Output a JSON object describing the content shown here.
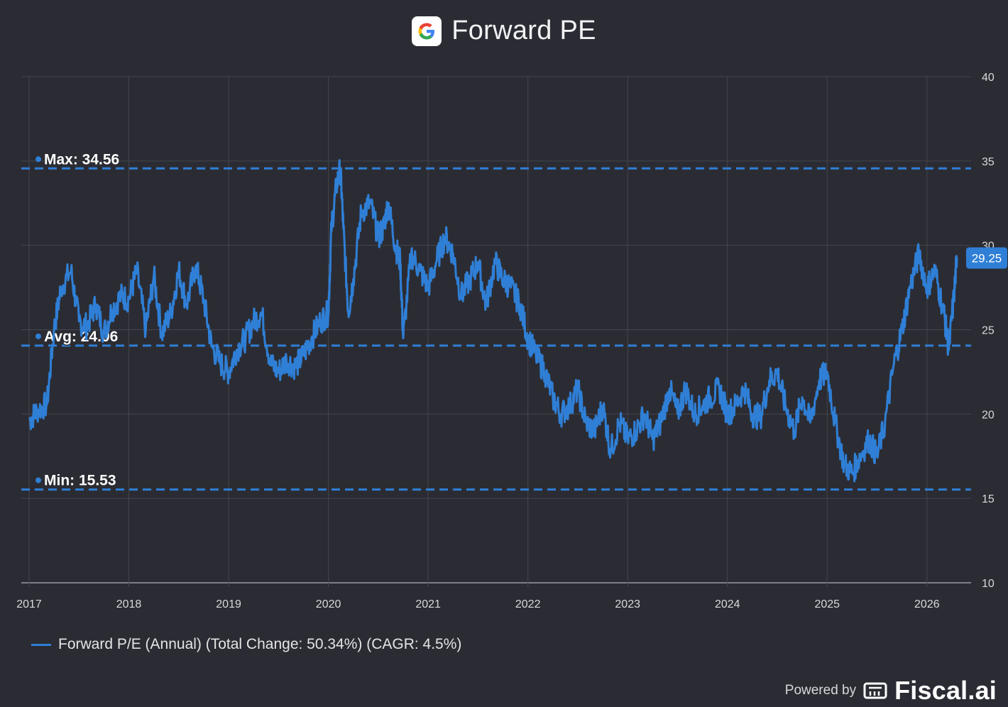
{
  "header": {
    "title": "Forward PE",
    "logo_letter": "G"
  },
  "chart_data": {
    "type": "line",
    "title": "Forward PE",
    "xlabel": "",
    "ylabel": "",
    "ylim": [
      10,
      40
    ],
    "xlim": [
      2017.0,
      2026.35
    ],
    "y_ticks": [
      10,
      15,
      20,
      25,
      30,
      35,
      40
    ],
    "x_ticks": [
      2017,
      2018,
      2019,
      2020,
      2021,
      2022,
      2023,
      2024,
      2025,
      2026
    ],
    "grid": true,
    "series": [
      {
        "name": "Forward P/E (Annual)",
        "color": "#2f7fd6",
        "x": [
          2017.0,
          2017.08,
          2017.18,
          2017.25,
          2017.32,
          2017.42,
          2017.5,
          2017.58,
          2017.67,
          2017.75,
          2017.83,
          2017.92,
          2018.0,
          2018.08,
          2018.17,
          2018.25,
          2018.33,
          2018.42,
          2018.5,
          2018.58,
          2018.67,
          2018.75,
          2018.83,
          2018.92,
          2019.0,
          2019.08,
          2019.17,
          2019.25,
          2019.33,
          2019.42,
          2019.5,
          2019.58,
          2019.67,
          2019.75,
          2019.83,
          2019.92,
          2020.0,
          2020.03,
          2020.08,
          2020.12,
          2020.15,
          2020.2,
          2020.25,
          2020.33,
          2020.42,
          2020.5,
          2020.55,
          2020.6,
          2020.67,
          2020.72,
          2020.75,
          2020.83,
          2020.92,
          2021.0,
          2021.08,
          2021.17,
          2021.25,
          2021.33,
          2021.42,
          2021.5,
          2021.58,
          2021.67,
          2021.75,
          2021.83,
          2021.92,
          2022.0,
          2022.08,
          2022.17,
          2022.25,
          2022.33,
          2022.42,
          2022.5,
          2022.58,
          2022.67,
          2022.75,
          2022.83,
          2022.92,
          2023.0,
          2023.08,
          2023.17,
          2023.25,
          2023.33,
          2023.42,
          2023.5,
          2023.58,
          2023.67,
          2023.75,
          2023.83,
          2023.92,
          2024.0,
          2024.08,
          2024.17,
          2024.25,
          2024.33,
          2024.42,
          2024.5,
          2024.58,
          2024.67,
          2024.75,
          2024.83,
          2024.92,
          2025.0,
          2025.08,
          2025.17,
          2025.25,
          2025.33,
          2025.42,
          2025.5,
          2025.58,
          2025.67,
          2025.75,
          2025.83,
          2025.92,
          2026.0,
          2026.08,
          2026.17,
          2026.22,
          2026.27,
          2026.3
        ],
        "values": [
          19.6,
          20.2,
          20.6,
          25.0,
          27.5,
          28.5,
          25.5,
          25.2,
          26.5,
          24.8,
          26.2,
          27.0,
          26.8,
          28.5,
          25.0,
          28.2,
          24.8,
          26.0,
          28.5,
          26.5,
          28.8,
          26.8,
          24.0,
          23.0,
          22.5,
          23.8,
          24.5,
          25.5,
          26.0,
          23.0,
          22.5,
          23.2,
          22.8,
          23.5,
          24.5,
          25.5,
          26.0,
          31.0,
          33.5,
          34.56,
          31.0,
          26.0,
          28.0,
          32.0,
          32.5,
          30.5,
          31.0,
          32.5,
          30.0,
          29.0,
          24.5,
          29.5,
          28.5,
          27.5,
          29.0,
          30.5,
          29.5,
          27.0,
          28.0,
          29.0,
          26.5,
          29.0,
          28.0,
          27.5,
          26.5,
          24.5,
          23.5,
          22.5,
          21.0,
          20.0,
          20.5,
          21.5,
          19.5,
          19.0,
          20.5,
          17.8,
          19.5,
          18.5,
          19.0,
          20.0,
          18.5,
          19.5,
          21.5,
          20.0,
          21.5,
          20.0,
          20.5,
          21.0,
          21.5,
          20.0,
          20.5,
          21.5,
          20.0,
          19.8,
          22.0,
          22.5,
          20.5,
          19.0,
          21.0,
          19.5,
          22.0,
          22.5,
          19.5,
          17.0,
          16.5,
          17.5,
          18.5,
          17.5,
          19.5,
          23.0,
          25.0,
          27.5,
          29.5,
          27.5,
          28.5,
          26.0,
          23.8,
          27.0,
          29.25
        ]
      }
    ],
    "reference_lines": [
      {
        "label": "Max: 34.56",
        "value": 34.56
      },
      {
        "label": "Avg: 24.06",
        "value": 24.06
      },
      {
        "label": "Min: 15.53",
        "value": 15.53
      }
    ],
    "last_value_label": "29.25",
    "legend": {
      "label": "Forward P/E (Annual) (Total Change: 50.34%) (CAGR: 4.5%)",
      "position": "bottom-left"
    }
  },
  "footer": {
    "powered_by": "Powered by",
    "brand": "Fiscal.ai"
  }
}
